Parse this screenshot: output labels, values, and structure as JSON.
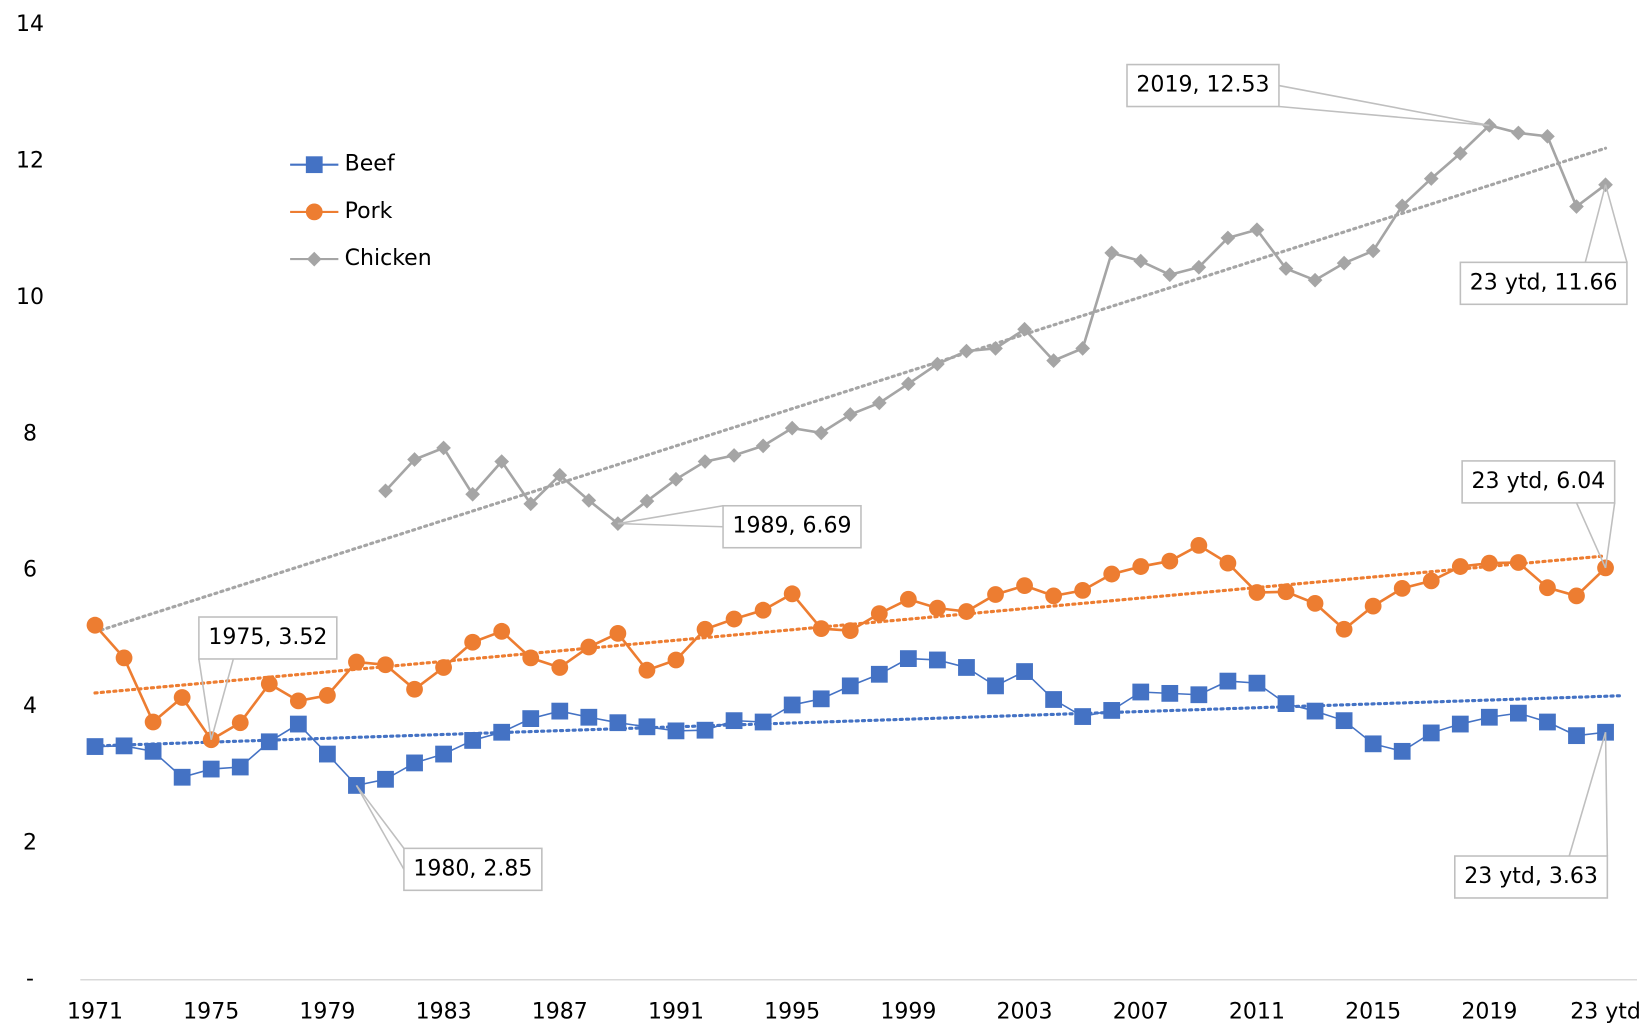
{
  "chart_data": {
    "type": "line",
    "categories": [
      "1971",
      null,
      null,
      null,
      "1975",
      null,
      null,
      null,
      "1979",
      null,
      null,
      null,
      "1983",
      null,
      null,
      null,
      "1987",
      null,
      null,
      null,
      "1991",
      null,
      null,
      null,
      "1995",
      null,
      null,
      null,
      "1999",
      null,
      null,
      null,
      "2003",
      null,
      null,
      null,
      "2007",
      null,
      null,
      null,
      "2011",
      null,
      null,
      null,
      "2015",
      null,
      null,
      null,
      "2019",
      null,
      null,
      null,
      "23 ytd"
    ],
    "series": [
      {
        "name": "Beef",
        "color": "#4472c4",
        "marker": "square",
        "values": [
          3.42,
          3.43,
          3.35,
          2.97,
          3.09,
          3.12,
          3.49,
          3.75,
          3.31,
          2.85,
          2.94,
          3.18,
          3.31,
          3.51,
          3.63,
          3.83,
          3.94,
          3.85,
          3.77,
          3.71,
          3.65,
          3.66,
          3.8,
          3.78,
          4.03,
          4.12,
          4.31,
          4.48,
          4.71,
          4.69,
          4.58,
          4.31,
          4.52,
          4.11,
          3.86,
          3.95,
          4.22,
          4.2,
          4.18,
          4.38,
          4.35,
          4.05,
          3.94,
          3.8,
          3.46,
          3.35,
          3.62,
          3.75,
          3.85,
          3.91,
          3.78,
          3.58,
          3.63
        ],
        "value_labels": [
          null,
          null,
          null,
          null,
          null,
          null,
          null,
          null,
          null,
          "1980,  2.85",
          null,
          null,
          null,
          null,
          null,
          null,
          null,
          null,
          null,
          null,
          null,
          null,
          null,
          null,
          null,
          null,
          null,
          null,
          null,
          null,
          null,
          null,
          null,
          null,
          null,
          null,
          null,
          null,
          null,
          null,
          null,
          null,
          null,
          null,
          null,
          null,
          null,
          null,
          null,
          null,
          null,
          null,
          "23 ytd,  3.63"
        ]
      },
      {
        "name": "Pork",
        "color": "#ed7d31",
        "marker": "circle",
        "values": [
          5.2,
          4.72,
          3.78,
          4.14,
          3.52,
          3.77,
          4.34,
          4.09,
          4.17,
          4.66,
          4.62,
          4.26,
          4.58,
          4.95,
          5.11,
          4.72,
          4.58,
          4.88,
          5.08,
          4.54,
          4.69,
          5.14,
          5.29,
          5.42,
          5.66,
          5.15,
          5.12,
          5.37,
          5.58,
          5.45,
          5.4,
          5.65,
          5.78,
          5.63,
          5.71,
          5.95,
          6.06,
          6.14,
          6.37,
          6.11,
          5.68,
          5.69,
          5.52,
          5.14,
          5.48,
          5.74,
          5.85,
          6.06,
          6.11,
          6.12,
          5.75,
          5.63,
          6.04
        ],
        "value_labels": [
          null,
          null,
          null,
          null,
          "1975,  3.52",
          null,
          null,
          null,
          null,
          null,
          null,
          null,
          null,
          null,
          null,
          null,
          null,
          null,
          null,
          null,
          null,
          null,
          null,
          null,
          null,
          null,
          null,
          null,
          null,
          null,
          null,
          null,
          null,
          null,
          null,
          null,
          null,
          null,
          null,
          null,
          null,
          null,
          null,
          null,
          null,
          null,
          null,
          null,
          null,
          null,
          null,
          null,
          "23 ytd,  6.04"
        ]
      },
      {
        "name": "Chicken",
        "color": "#a5a5a5",
        "marker": "diamond",
        "values": [
          null,
          null,
          null,
          null,
          null,
          null,
          null,
          null,
          null,
          null,
          7.17,
          7.63,
          7.8,
          7.12,
          7.6,
          6.98,
          7.4,
          7.03,
          6.69,
          7.02,
          7.34,
          7.6,
          7.69,
          7.83,
          8.09,
          8.02,
          8.29,
          8.46,
          8.74,
          9.03,
          9.22,
          9.26,
          9.54,
          9.08,
          9.26,
          10.66,
          10.54,
          10.34,
          10.45,
          10.88,
          11.0,
          10.43,
          10.26,
          10.51,
          10.69,
          11.35,
          11.75,
          12.12,
          12.53,
          12.42,
          12.37,
          11.34,
          11.66
        ],
        "value_labels": [
          null,
          null,
          null,
          null,
          null,
          null,
          null,
          null,
          null,
          null,
          null,
          null,
          null,
          null,
          null,
          null,
          null,
          null,
          "1989,  6.69",
          null,
          null,
          null,
          null,
          null,
          null,
          null,
          null,
          null,
          null,
          null,
          null,
          null,
          null,
          null,
          null,
          null,
          null,
          null,
          null,
          null,
          null,
          null,
          null,
          null,
          null,
          null,
          null,
          null,
          "2019,  12.53",
          null,
          null,
          null,
          "23 ytd,  11.66"
        ]
      }
    ],
    "ylim": [
      0,
      14
    ],
    "yticks": [
      {
        "value": 0,
        "label": "-"
      },
      2,
      4,
      6,
      8,
      10,
      12,
      14
    ],
    "grid": false,
    "trendline": true,
    "legend": "upper left"
  }
}
